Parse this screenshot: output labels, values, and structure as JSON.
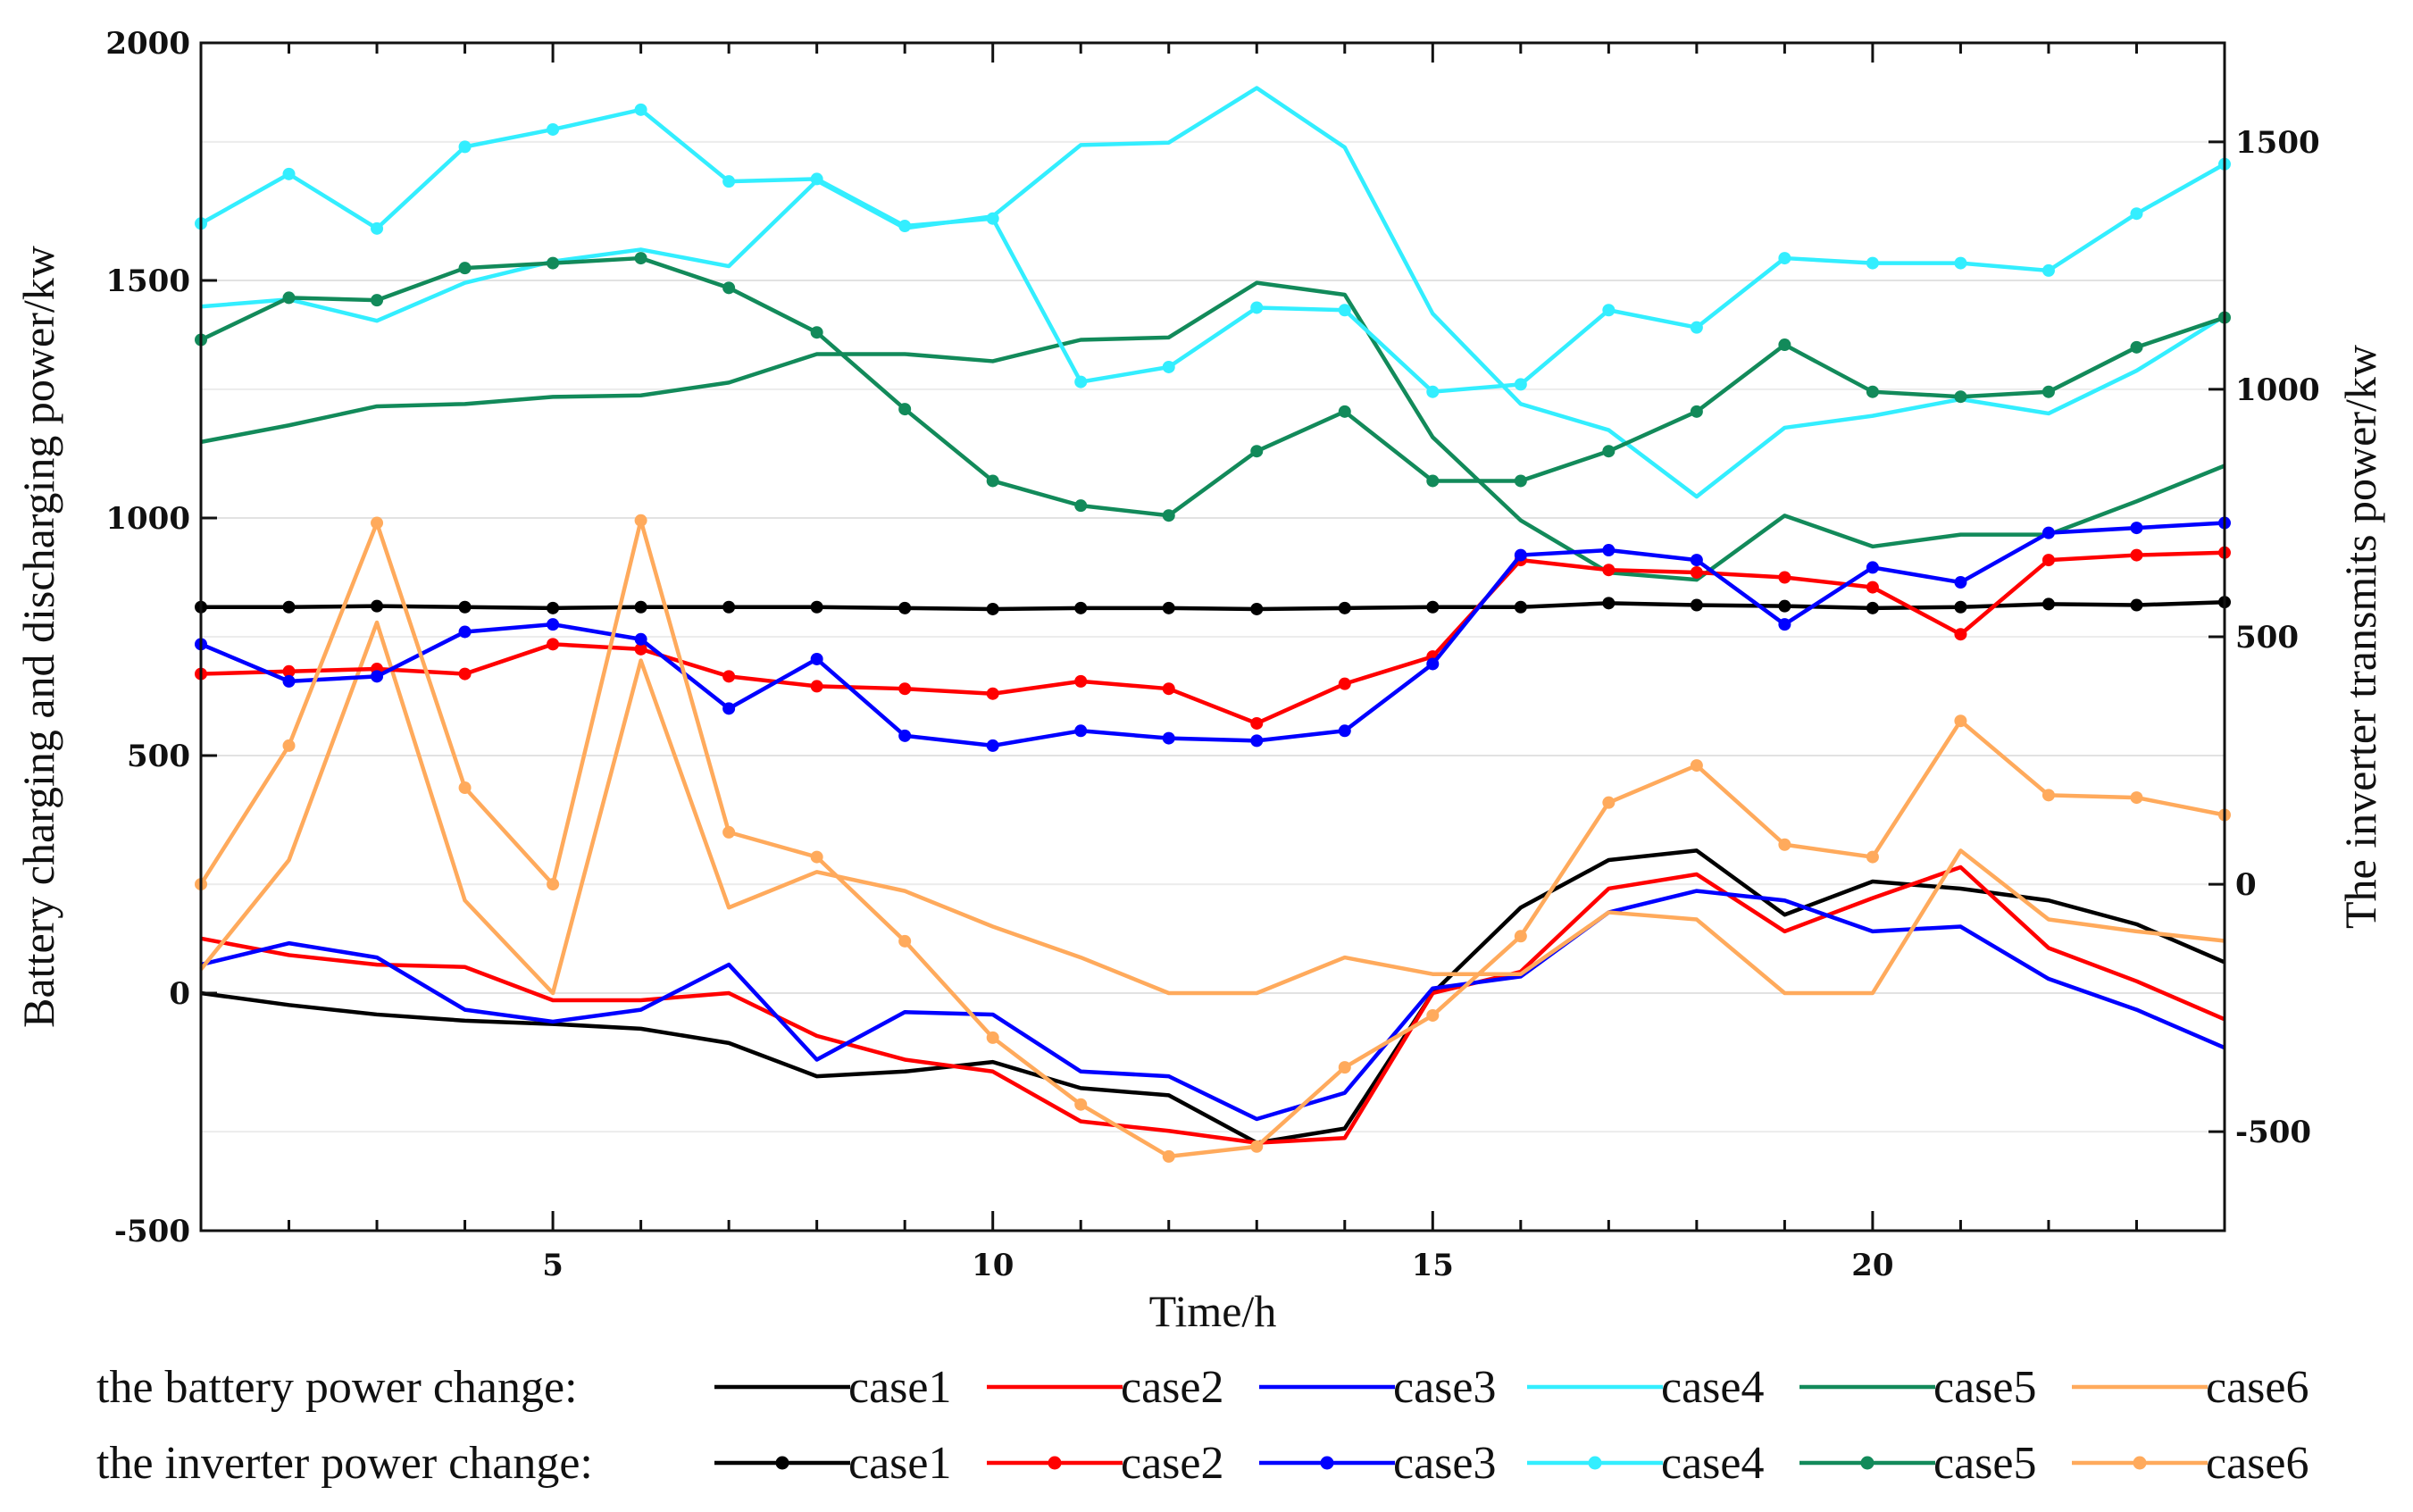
{
  "chart_data": {
    "type": "line",
    "xlabel": "Time/h",
    "ylabel_left": "Battery charging and discharging power/kw",
    "ylabel_right": "The inverter transmits power/kw",
    "xlim": [
      1,
      24
    ],
    "ylim_left": [
      -500,
      2000
    ],
    "ylim_right": [
      -700,
      1700
    ],
    "x_ticks": [
      5,
      10,
      15,
      20
    ],
    "y_ticks_left": [
      -500,
      0,
      500,
      1000,
      1500,
      2000
    ],
    "y_ticks_right": [
      -500,
      0,
      500,
      1000,
      1500
    ],
    "x": [
      1,
      2,
      3,
      4,
      5,
      6,
      7,
      8,
      9,
      10,
      11,
      12,
      13,
      14,
      15,
      16,
      17,
      18,
      19,
      20,
      21,
      22,
      23,
      24
    ],
    "battery_series": [
      {
        "name": "case1",
        "color": "#000000",
        "values": [
          0,
          -25,
          -45,
          -58,
          -65,
          -75,
          -105,
          -175,
          -165,
          -145,
          -200,
          -215,
          -315,
          -285,
          0,
          180,
          280,
          300,
          165,
          235,
          220,
          195,
          145,
          65
        ]
      },
      {
        "name": "case2",
        "color": "#ff0000",
        "values": [
          115,
          80,
          60,
          55,
          -15,
          -15,
          0,
          -90,
          -140,
          -165,
          -270,
          -290,
          -315,
          -305,
          0,
          45,
          220,
          250,
          130,
          200,
          265,
          95,
          25,
          -55
        ]
      },
      {
        "name": "case3",
        "color": "#0000ff",
        "values": [
          60,
          105,
          75,
          -35,
          -60,
          -35,
          60,
          -140,
          -40,
          -45,
          -165,
          -175,
          -265,
          -210,
          10,
          35,
          170,
          215,
          195,
          130,
          140,
          30,
          -35,
          -115
        ]
      },
      {
        "name": "case4",
        "color": "#33eeff",
        "values": [
          1445,
          1460,
          1415,
          1495,
          1540,
          1565,
          1530,
          1710,
          1610,
          1635,
          1785,
          1790,
          1905,
          1780,
          1430,
          1240,
          1185,
          1045,
          1190,
          1215,
          1250,
          1220,
          1310,
          1425
        ]
      },
      {
        "name": "case5",
        "color": "#128a5a",
        "values": [
          1160,
          1195,
          1235,
          1240,
          1255,
          1258,
          1285,
          1345,
          1345,
          1330,
          1375,
          1380,
          1495,
          1470,
          1170,
          995,
          885,
          870,
          1005,
          940,
          965,
          965,
          1035,
          1110
        ]
      },
      {
        "name": "case6",
        "color": "#ffaa5c",
        "values": [
          50,
          280,
          780,
          195,
          0,
          700,
          180,
          255,
          215,
          140,
          75,
          0,
          0,
          75,
          40,
          40,
          170,
          155,
          0,
          0,
          300,
          155,
          130,
          110
        ]
      }
    ],
    "inverter_series": [
      {
        "name": "case1",
        "color": "#000000",
        "values": [
          560,
          560,
          562,
          560,
          558,
          560,
          560,
          560,
          558,
          556,
          558,
          558,
          556,
          558,
          560,
          560,
          568,
          564,
          562,
          558,
          560,
          566,
          564,
          570
        ]
      },
      {
        "name": "case2",
        "color": "#ff0000",
        "values": [
          425,
          430,
          435,
          425,
          485,
          475,
          420,
          400,
          395,
          385,
          410,
          395,
          325,
          405,
          460,
          655,
          635,
          630,
          620,
          600,
          505,
          655,
          665,
          670
        ]
      },
      {
        "name": "case3",
        "color": "#0000ff",
        "values": [
          485,
          410,
          420,
          510,
          525,
          495,
          355,
          455,
          300,
          280,
          310,
          295,
          290,
          310,
          445,
          665,
          675,
          655,
          525,
          640,
          610,
          710,
          720,
          730
        ]
      },
      {
        "name": "case4",
        "color": "#33eeff",
        "values": [
          1335,
          1435,
          1325,
          1490,
          1525,
          1565,
          1420,
          1425,
          1330,
          1345,
          1015,
          1045,
          1165,
          1160,
          995,
          1010,
          1160,
          1125,
          1265,
          1255,
          1255,
          1240,
          1355,
          1455
        ]
      },
      {
        "name": "case5",
        "color": "#128a5a",
        "values": [
          1100,
          1185,
          1180,
          1245,
          1255,
          1265,
          1205,
          1115,
          960,
          815,
          765,
          745,
          875,
          955,
          815,
          815,
          875,
          955,
          1090,
          995,
          985,
          995,
          1085,
          1145
        ]
      },
      {
        "name": "case6",
        "color": "#ffaa5c",
        "values": [
          0,
          280,
          730,
          195,
          0,
          735,
          105,
          55,
          -115,
          -310,
          -445,
          -550,
          -530,
          -370,
          -265,
          -105,
          165,
          240,
          80,
          55,
          330,
          180,
          175,
          140
        ]
      }
    ],
    "legend": {
      "battery_label": "the battery power change:",
      "inverter_label": "the inverter power change:",
      "names": [
        "case1",
        "case2",
        "case3",
        "case4",
        "case5",
        "case6"
      ],
      "colors": [
        "#000000",
        "#ff0000",
        "#0000ff",
        "#33eeff",
        "#128a5a",
        "#ffaa5c"
      ]
    }
  }
}
